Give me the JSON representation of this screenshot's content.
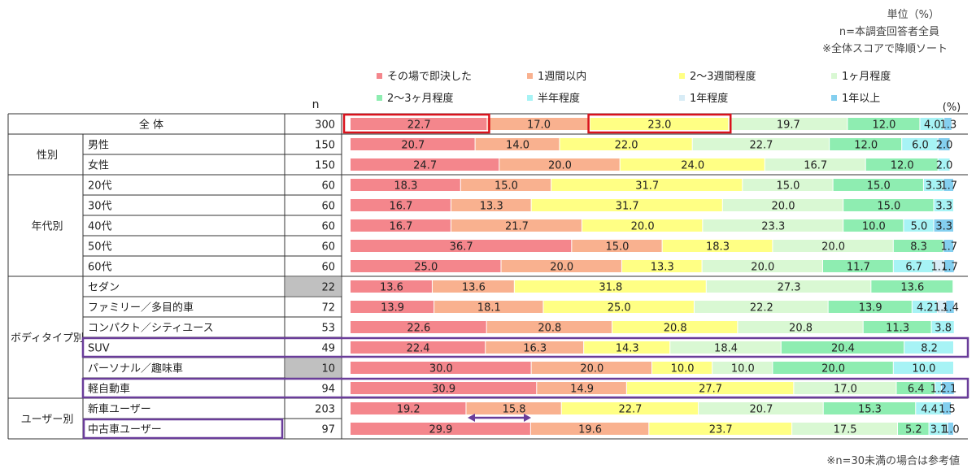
{
  "notes": {
    "unit": "単位（%）",
    "n_def": "n=本調査回答者全員",
    "sort": "※全体スコアで降順ソート",
    "footnote": "※n=30未満の場合は参考値"
  },
  "chart_data": {
    "type": "bar",
    "orientation": "horizontal-stacked-100",
    "n_header": "n",
    "percent_label": "(%)",
    "series": [
      {
        "name": "その場で即決した",
        "color": "#f4868c"
      },
      {
        "name": "1週間以内",
        "color": "#f9b18f"
      },
      {
        "name": "2～3週間程度",
        "color": "#ffff84"
      },
      {
        "name": "1ヶ月程度",
        "color": "#d9f8d3"
      },
      {
        "name": "2～3ヶ月程度",
        "color": "#8eedb1"
      },
      {
        "name": "半年程度",
        "color": "#a7f3f5"
      },
      {
        "name": "1年程度",
        "color": "#d8ecf6"
      },
      {
        "name": "1年以上",
        "color": "#84cfef"
      }
    ],
    "groups": [
      {
        "label": "全 体",
        "rows": [
          {
            "label": "",
            "n": "300",
            "values": [
              22.7,
              17.0,
              23.0,
              19.7,
              12.0,
              4.0,
              0,
              1.3
            ]
          }
        ]
      },
      {
        "label": "性別",
        "rows": [
          {
            "label": "男性",
            "n": "150",
            "values": [
              20.7,
              14.0,
              22.0,
              22.7,
              12.0,
              6.0,
              0,
              2.0
            ]
          },
          {
            "label": "女性",
            "n": "150",
            "values": [
              24.7,
              20.0,
              24.0,
              16.7,
              12.0,
              2.0,
              0,
              0
            ]
          }
        ]
      },
      {
        "label": "年代別",
        "rows": [
          {
            "label": "20代",
            "n": "60",
            "values": [
              18.3,
              15.0,
              31.7,
              15.0,
              15.0,
              3.3,
              0,
              1.7
            ]
          },
          {
            "label": "30代",
            "n": "60",
            "values": [
              16.7,
              13.3,
              31.7,
              20.0,
              15.0,
              3.3,
              0,
              0
            ]
          },
          {
            "label": "40代",
            "n": "60",
            "values": [
              16.7,
              21.7,
              20.0,
              23.3,
              10.0,
              5.0,
              0,
              3.3
            ]
          },
          {
            "label": "50代",
            "n": "60",
            "values": [
              36.7,
              15.0,
              18.3,
              20.0,
              8.3,
              0,
              0,
              1.7
            ]
          },
          {
            "label": "60代",
            "n": "60",
            "values": [
              25.0,
              20.0,
              13.3,
              20.0,
              11.7,
              6.7,
              1.7,
              1.7
            ]
          }
        ]
      },
      {
        "label": "ボディタイプ別",
        "rows": [
          {
            "label": "セダン",
            "n": "22",
            "small_sample": true,
            "values": [
              13.6,
              13.6,
              31.8,
              27.3,
              13.6,
              0,
              0,
              0
            ]
          },
          {
            "label": "ファミリー／多目的車",
            "n": "72",
            "values": [
              13.9,
              18.1,
              25.0,
              22.2,
              13.9,
              4.2,
              1.4,
              1.4
            ]
          },
          {
            "label": "コンパクト／シティユース",
            "n": "53",
            "values": [
              22.6,
              20.8,
              20.8,
              20.8,
              11.3,
              3.8,
              0,
              0
            ]
          },
          {
            "label": "SUV",
            "n": "49",
            "values": [
              22.4,
              16.3,
              14.3,
              18.4,
              20.4,
              8.2,
              0,
              0
            ]
          },
          {
            "label": "パーソナル／趣味車",
            "n": "10",
            "small_sample": true,
            "values": [
              30.0,
              20.0,
              10.0,
              10.0,
              20.0,
              10.0,
              0,
              0
            ]
          },
          {
            "label": "軽自動車",
            "n": "94",
            "values": [
              30.9,
              14.9,
              27.7,
              17.0,
              6.4,
              1.1,
              0,
              2.1
            ]
          }
        ]
      },
      {
        "label": "ユーザー別",
        "rows": [
          {
            "label": "新車ユーザー",
            "n": "203",
            "values": [
              19.2,
              15.8,
              22.7,
              20.7,
              15.3,
              4.4,
              0,
              1.5
            ]
          },
          {
            "label": "中古車ユーザー",
            "n": "97",
            "values": [
              29.9,
              19.6,
              23.7,
              17.5,
              5.2,
              3.1,
              0,
              1.0
            ]
          }
        ]
      }
    ],
    "highlight_color": "#6a3d9a",
    "emphasis_color": "#d9121c"
  }
}
